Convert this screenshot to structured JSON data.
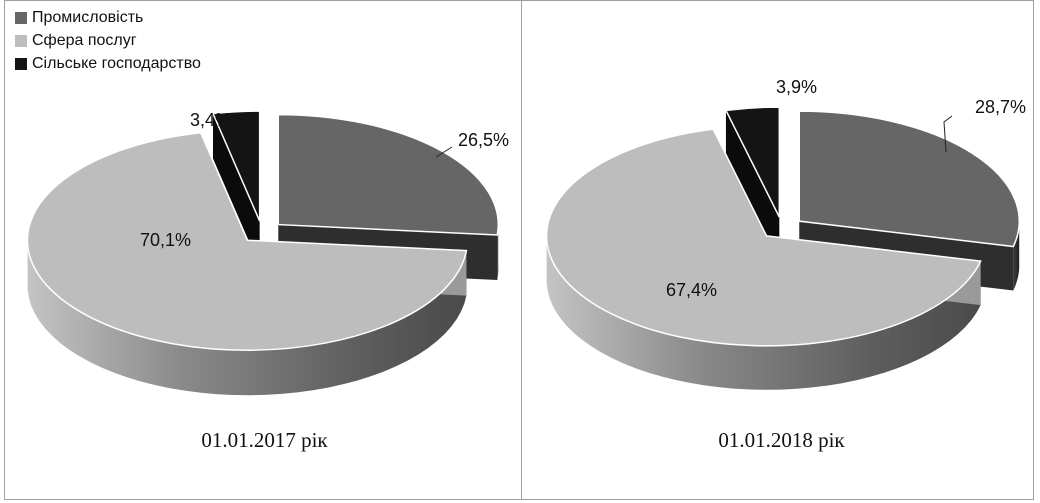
{
  "chart_data": [
    {
      "type": "pie",
      "caption": "01.01.2017 рік",
      "categories": [
        "Промисловість",
        "Сфера послуг",
        "Сільське господарство"
      ],
      "values": [
        26.5,
        70.1,
        3.4
      ],
      "labels": [
        "26,5%",
        "70,1%",
        "3,4%"
      ],
      "colors": [
        "#666666",
        "#bdbdbd",
        "#141414"
      ],
      "legend": "top-left",
      "exploded": "all slices"
    },
    {
      "type": "pie",
      "caption": "01.01.2018 рік",
      "categories": [
        "Промисловість",
        "Сфера послуг",
        "Сільське господарство"
      ],
      "values": [
        28.7,
        67.4,
        3.9
      ],
      "labels": [
        "28,7%",
        "67,4%",
        "3,9%"
      ],
      "colors": [
        "#666666",
        "#bdbdbd",
        "#141414"
      ],
      "legend": "none",
      "exploded": "all slices"
    }
  ],
  "legend_items": [
    "Промисловість",
    "Сфера послуг",
    "Сільське господарство"
  ]
}
